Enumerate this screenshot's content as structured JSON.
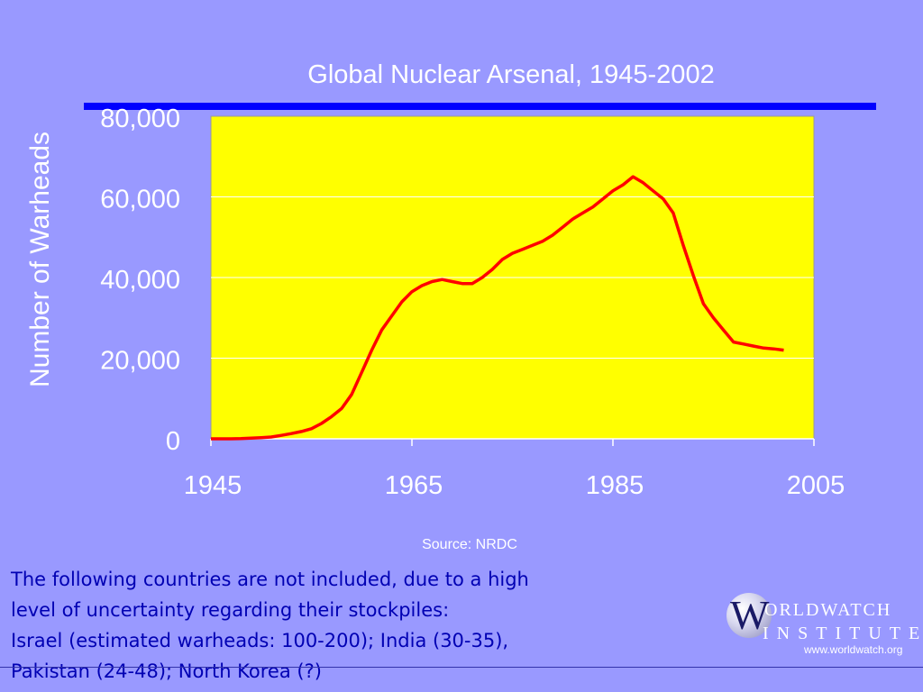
{
  "chart_data": {
    "type": "line",
    "title": "Global Nuclear Arsenal, 1945-2002",
    "ylabel": "Number of Warheads",
    "xlabel": "",
    "source": "Source:  NRDC",
    "xlim": [
      1945,
      2005
    ],
    "ylim": [
      0,
      80000
    ],
    "x_ticks": [
      "1945",
      "1965",
      "1985",
      "2005"
    ],
    "y_ticks": [
      "0",
      "20,000",
      "40,000",
      "60,000",
      "80,000"
    ],
    "grid": "horizontal",
    "legend": "none",
    "colors": {
      "background": "#9999ff",
      "plot_area": "#ffff00",
      "line": "#ff0000",
      "rule": "#0000ff",
      "text": "#ffffff"
    },
    "series": [
      {
        "x": [
          1945,
          1946,
          1947,
          1948,
          1949,
          1950,
          1951,
          1952,
          1953,
          1954,
          1955,
          1956,
          1957,
          1958,
          1959,
          1960,
          1961,
          1962,
          1963,
          1964,
          1965,
          1966,
          1967,
          1968,
          1969,
          1970,
          1971,
          1972,
          1973,
          1974,
          1975,
          1976,
          1977,
          1978,
          1979,
          1980,
          1981,
          1982,
          1983,
          1984,
          1985,
          1986,
          1987,
          1988,
          1989,
          1990,
          1991,
          1992,
          1993,
          1994,
          1995,
          1996,
          1997,
          1998,
          1999,
          2000,
          2001,
          2002
        ],
        "values": [
          0,
          0,
          0,
          50,
          170,
          300,
          450,
          850,
          1300,
          1800,
          2500,
          3800,
          5500,
          7500,
          11000,
          16500,
          22000,
          27000,
          30500,
          34000,
          36500,
          38000,
          39000,
          39500,
          39000,
          38500,
          38500,
          40000,
          42000,
          44500,
          46000,
          47000,
          48000,
          49000,
          50500,
          52500,
          54500,
          56000,
          57500,
          59500,
          61500,
          63000,
          65000,
          63500,
          61500,
          59500,
          56000,
          48000,
          40500,
          33500,
          30000,
          27000,
          24000,
          23500,
          23000,
          22500,
          22300,
          22000
        ]
      }
    ]
  },
  "footnote": {
    "line1": "The following countries are not included, due to a high",
    "line2": "level of uncertainty regarding their stockpiles:",
    "line3": "Israel (estimated warheads: 100-200); India (30-35),",
    "line4": "Pakistan (24-48); North Korea (?)"
  },
  "logo": {
    "initial": "W",
    "line1": "ORLDWATCH",
    "line2": "INSTITUTE",
    "url": "www.worldwatch.org"
  }
}
